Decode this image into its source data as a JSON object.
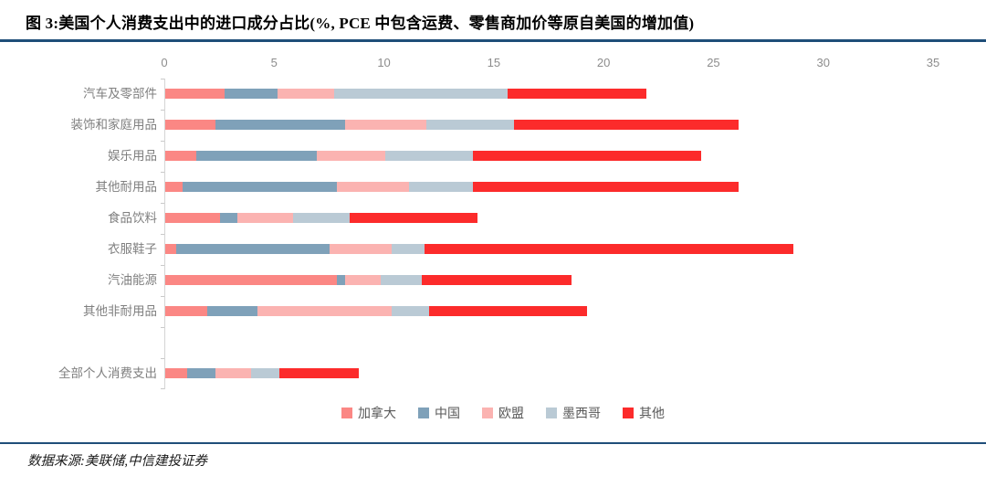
{
  "header": {
    "title": "图 3:美国个人消费支出中的进口成分占比(%, PCE 中包含运费、零售商加价等原自美国的增加值)"
  },
  "footer": {
    "source": "数据来源:美联储,中信建投证券"
  },
  "colors": {
    "accent_rule": "#1F4E79",
    "axis_line": "#d4d4d4",
    "tick_text": "#8c8c8c",
    "category_text": "#7f7f7f"
  },
  "chart_data": {
    "type": "bar",
    "orientation": "horizontal",
    "stacked": true,
    "title": "美国个人消费支出中的进口成分占比(%)",
    "categories": [
      "汽车及零部件",
      "装饰和家庭用品",
      "娱乐用品",
      "其他耐用品",
      "食品饮料",
      "衣服鞋子",
      "汽油能源",
      "其他非耐用品",
      "全部个人消费支出"
    ],
    "gap_before_last_category": true,
    "series": [
      {
        "name": "加拿大",
        "color": "#FB8784",
        "values": [
          2.7,
          2.3,
          1.4,
          0.8,
          2.5,
          0.5,
          7.8,
          1.9,
          1.0
        ]
      },
      {
        "name": "中国",
        "color": "#7FA1B9",
        "values": [
          2.4,
          5.9,
          5.5,
          7.0,
          0.8,
          7.0,
          0.4,
          2.3,
          1.3
        ]
      },
      {
        "name": "欧盟",
        "color": "#FBB3B1",
        "values": [
          2.6,
          3.7,
          3.1,
          3.3,
          2.5,
          2.8,
          1.6,
          6.1,
          1.6
        ]
      },
      {
        "name": "墨西哥",
        "color": "#BACAD5",
        "values": [
          7.9,
          4.0,
          4.0,
          2.9,
          2.6,
          1.5,
          1.9,
          1.7,
          1.3
        ]
      },
      {
        "name": "其他",
        "color": "#FC2B2B",
        "values": [
          6.3,
          10.2,
          10.4,
          12.1,
          5.8,
          16.8,
          6.8,
          7.2,
          3.6
        ]
      }
    ],
    "x_ticks": [
      0,
      5,
      10,
      15,
      20,
      25,
      30,
      35
    ],
    "xlim": [
      0,
      35
    ],
    "xlabel": "",
    "ylabel": "",
    "grid": false,
    "legend_position": "bottom"
  }
}
